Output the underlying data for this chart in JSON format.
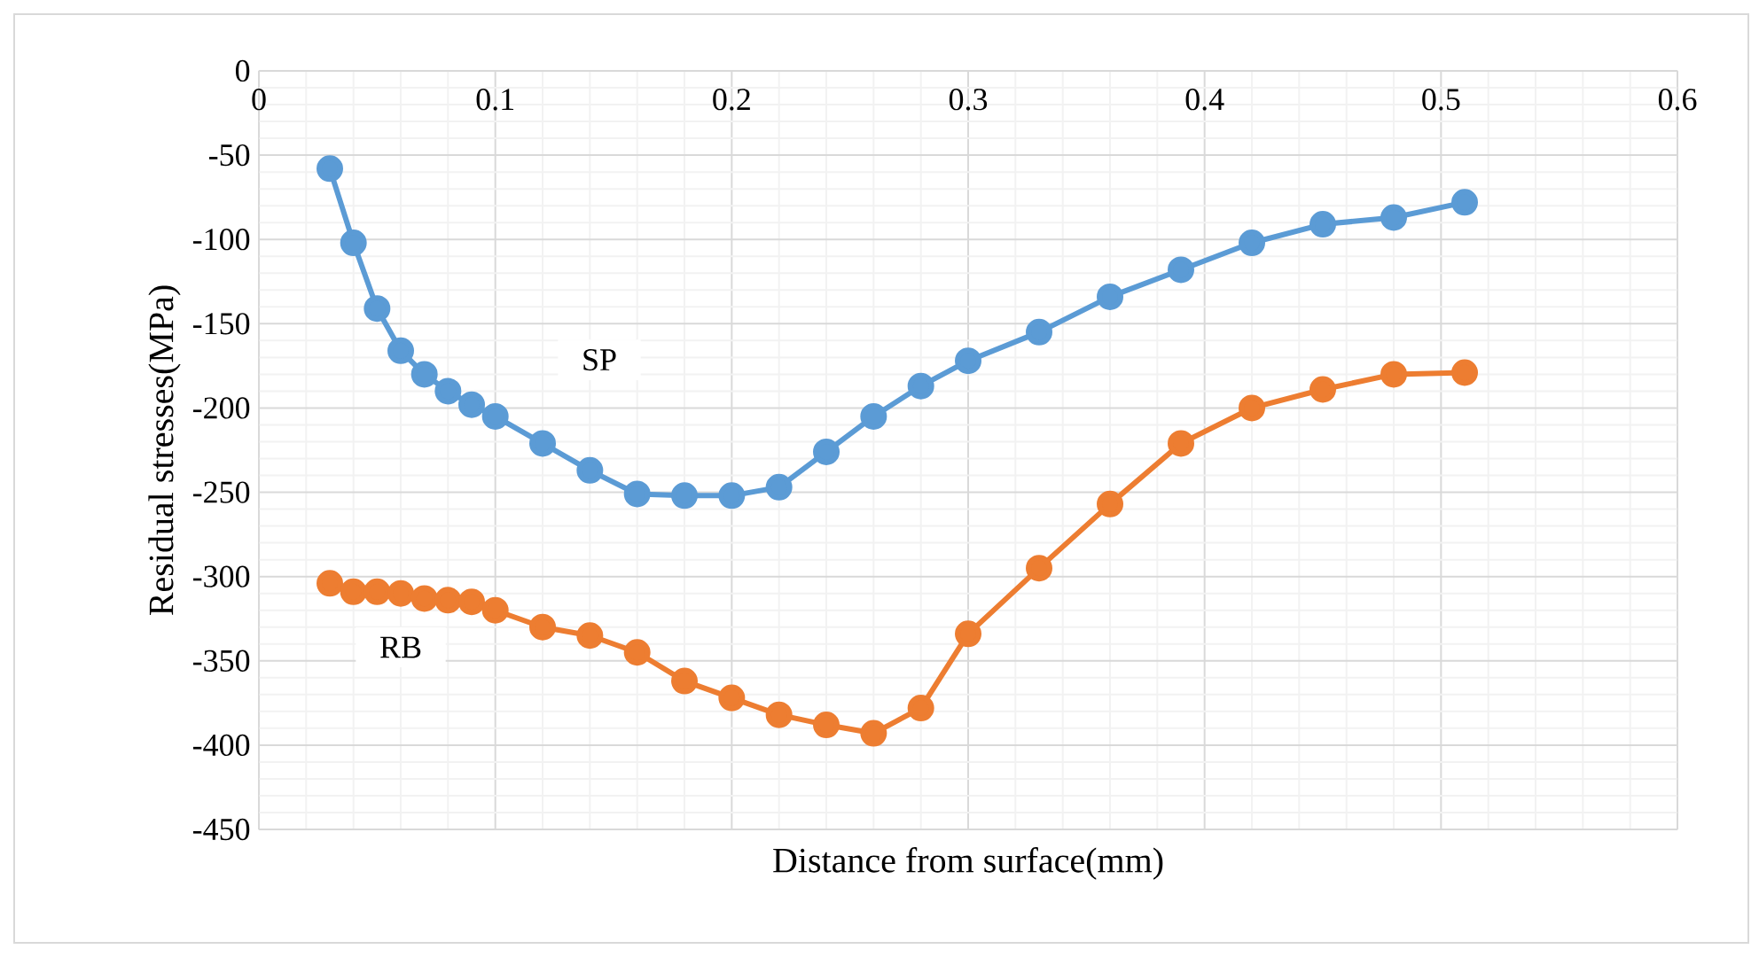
{
  "chart_data": {
    "type": "line",
    "xlabel": "Distance from surface(mm)",
    "ylabel": "Residual stresses(MPa)",
    "x": [
      0.03,
      0.04,
      0.05,
      0.06,
      0.07,
      0.08,
      0.09,
      0.1,
      0.12,
      0.14,
      0.16,
      0.18,
      0.2,
      0.22,
      0.24,
      0.26,
      0.28,
      0.3,
      0.33,
      0.36,
      0.39,
      0.42,
      0.45,
      0.48,
      0.51
    ],
    "series": [
      {
        "name": "SP",
        "color": "#5b9bd5",
        "values": [
          -58,
          -102,
          -141,
          -166,
          -180,
          -190,
          -198,
          -205,
          -221,
          -237,
          -251,
          -252,
          -252,
          -247,
          -226,
          -205,
          -187,
          -172,
          -155,
          -134,
          -118,
          -102,
          -91,
          -87,
          -78
        ]
      },
      {
        "name": "RB",
        "color": "#ed7d31",
        "values": [
          -304,
          -309,
          -309,
          -310,
          -313,
          -314,
          -315,
          -320,
          -330,
          -335,
          -345,
          -362,
          -372,
          -382,
          -388,
          -393,
          -378,
          -334,
          -295,
          -257,
          -221,
          -200,
          -189,
          -180,
          -179
        ]
      }
    ],
    "xlim": [
      0,
      0.6
    ],
    "xticks": [
      0,
      0.1,
      0.2,
      0.3,
      0.4,
      0.5,
      0.6
    ],
    "ylim": [
      -450,
      0
    ],
    "yticks": [
      -450,
      -400,
      -350,
      -300,
      -250,
      -200,
      -150,
      -100,
      -50,
      0
    ],
    "grid": true,
    "marker": "circle",
    "line_style": "solid"
  }
}
